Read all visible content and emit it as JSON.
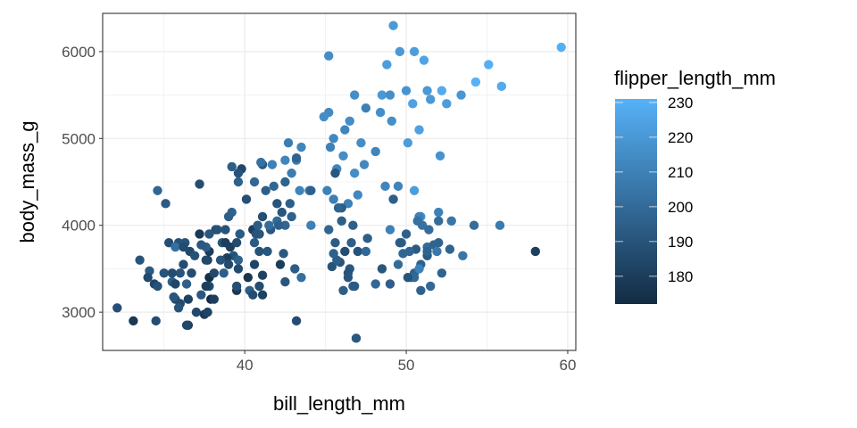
{
  "chart_data": {
    "type": "scatter",
    "xlabel": "bill_length_mm",
    "ylabel": "body_mass_g",
    "xlim": [
      31.2,
      60.5
    ],
    "ylim": [
      2560,
      6440
    ],
    "x_ticks": [
      "40",
      "50",
      "60"
    ],
    "y_ticks": [
      "3000",
      "4000",
      "5000",
      "6000"
    ],
    "grid": true,
    "legend": {
      "title": "flipper_length_mm",
      "placement": "right",
      "type": "colorbar",
      "range": [
        172,
        231
      ],
      "ticks": [
        "180",
        "190",
        "200",
        "210",
        "220",
        "230"
      ],
      "low_color": "#132B43",
      "high_color": "#56B1F7"
    },
    "points_fields": [
      "bill_length_mm",
      "body_mass_g",
      "flipper_length_mm"
    ],
    "points": [
      [
        49.2,
        6300,
        221
      ],
      [
        59.6,
        6050,
        230
      ],
      [
        45.2,
        5950,
        215
      ],
      [
        55.1,
        5850,
        230
      ],
      [
        48.8,
        5850,
        222
      ],
      [
        49.6,
        6000,
        220
      ],
      [
        50.5,
        6000,
        222
      ],
      [
        51.1,
        5900,
        225
      ],
      [
        54.3,
        5650,
        231
      ],
      [
        55.9,
        5600,
        228
      ],
      [
        52.2,
        5550,
        228
      ],
      [
        50.0,
        5550,
        218
      ],
      [
        51.3,
        5550,
        220
      ],
      [
        51.5,
        5450,
        220
      ],
      [
        52.5,
        5400,
        222
      ],
      [
        53.4,
        5500,
        219
      ],
      [
        48.5,
        5500,
        220
      ],
      [
        46.8,
        5500,
        215
      ],
      [
        49.0,
        5500,
        216
      ],
      [
        50.4,
        5400,
        224
      ],
      [
        47.5,
        5350,
        210
      ],
      [
        45.2,
        5300,
        214
      ],
      [
        46.5,
        5200,
        215
      ],
      [
        44.9,
        5250,
        215
      ],
      [
        46.2,
        5100,
        212
      ],
      [
        48.4,
        5300,
        216
      ],
      [
        50.8,
        5100,
        224
      ],
      [
        45.5,
        5000,
        213
      ],
      [
        47.2,
        4950,
        215
      ],
      [
        43.5,
        4900,
        212
      ],
      [
        42.7,
        4950,
        208
      ],
      [
        46.1,
        4800,
        215
      ],
      [
        48.1,
        4850,
        212
      ],
      [
        49.1,
        5200,
        216
      ],
      [
        50.1,
        4950,
        222
      ],
      [
        52.1,
        4800,
        218
      ],
      [
        45.3,
        4900,
        210
      ],
      [
        47.4,
        4700,
        213
      ],
      [
        46.8,
        4600,
        215
      ],
      [
        43.2,
        4750,
        209
      ],
      [
        45.7,
        4650,
        212
      ],
      [
        48.7,
        4450,
        212
      ],
      [
        49.5,
        4450,
        211
      ],
      [
        44.0,
        4400,
        208
      ],
      [
        45.1,
        4400,
        210
      ],
      [
        46.4,
        4250,
        210
      ],
      [
        45.5,
        4300,
        209
      ],
      [
        50.5,
        4400,
        222
      ],
      [
        45.8,
        4200,
        210
      ],
      [
        47.0,
        4350,
        213
      ],
      [
        42.9,
        4600,
        208
      ],
      [
        41.7,
        4700,
        210
      ],
      [
        41.1,
        4700,
        208
      ],
      [
        43.4,
        4400,
        211
      ],
      [
        50.9,
        4100,
        218
      ],
      [
        42.5,
        4750,
        212
      ],
      [
        46.5,
        3500,
        192
      ],
      [
        50.0,
        3900,
        196
      ],
      [
        51.3,
        3650,
        193
      ],
      [
        45.4,
        3525,
        190
      ],
      [
        52.7,
        3725,
        197
      ],
      [
        45.2,
        3950,
        198
      ],
      [
        46.1,
        3250,
        195
      ],
      [
        51.3,
        3750,
        201
      ],
      [
        46.0,
        4050,
        195
      ],
      [
        51.3,
        3700,
        197
      ],
      [
        46.6,
        3800,
        195
      ],
      [
        51.7,
        3775,
        197
      ],
      [
        47.0,
        3700,
        190
      ],
      [
        52.0,
        4050,
        201
      ],
      [
        45.9,
        3575,
        190
      ],
      [
        50.5,
        3450,
        196
      ],
      [
        50.3,
        3400,
        200
      ],
      [
        58.0,
        3700,
        181
      ],
      [
        46.4,
        3450,
        190
      ],
      [
        49.2,
        4300,
        195
      ],
      [
        42.4,
        3675,
        192
      ],
      [
        48.5,
        3500,
        191
      ],
      [
        43.2,
        2900,
        187
      ],
      [
        50.6,
        3725,
        193
      ],
      [
        46.7,
        3300,
        195
      ],
      [
        52.0,
        3800,
        197
      ],
      [
        50.5,
        3400,
        199
      ],
      [
        49.5,
        3550,
        200
      ],
      [
        46.4,
        3400,
        191
      ],
      [
        52.8,
        4050,
        205
      ],
      [
        40.9,
        3300,
        187
      ],
      [
        54.2,
        4000,
        201
      ],
      [
        42.5,
        3350,
        191
      ],
      [
        51.0,
        4000,
        203
      ],
      [
        49.7,
        3800,
        195
      ],
      [
        47.5,
        3700,
        199
      ],
      [
        47.6,
        3850,
        195
      ],
      [
        52.0,
        4150,
        210
      ],
      [
        46.9,
        2700,
        192
      ],
      [
        53.5,
        3650,
        205
      ],
      [
        49.0,
        3950,
        210
      ],
      [
        46.2,
        3700,
        187
      ],
      [
        50.9,
        3550,
        196
      ],
      [
        45.5,
        3675,
        196
      ],
      [
        50.9,
        3250,
        196
      ],
      [
        50.8,
        4100,
        210
      ],
      [
        50.1,
        3400,
        190
      ],
      [
        49.0,
        3325,
        195
      ],
      [
        51.5,
        3300,
        199
      ],
      [
        49.8,
        3675,
        198
      ],
      [
        48.1,
        3325,
        199
      ],
      [
        51.4,
        3950,
        201
      ],
      [
        45.7,
        3600,
        195
      ],
      [
        50.7,
        4050,
        203
      ],
      [
        42.5,
        4000,
        198
      ],
      [
        52.2,
        3450,
        197
      ],
      [
        45.6,
        3800,
        194
      ],
      [
        51.9,
        3700,
        206
      ],
      [
        46.8,
        3300,
        193
      ],
      [
        46.7,
        4000,
        195
      ],
      [
        55.8,
        4000,
        207
      ],
      [
        43.5,
        3400,
        202
      ],
      [
        49.6,
        3800,
        193
      ],
      [
        50.8,
        3500,
        210
      ],
      [
        50.2,
        3700,
        198
      ],
      [
        39.1,
        3750,
        181
      ],
      [
        39.5,
        3800,
        186
      ],
      [
        40.3,
        3250,
        195
      ],
      [
        36.7,
        3450,
        193
      ],
      [
        39.3,
        3650,
        190
      ],
      [
        38.9,
        3625,
        181
      ],
      [
        39.2,
        4675,
        195
      ],
      [
        34.1,
        3475,
        193
      ],
      [
        42.0,
        4250,
        190
      ],
      [
        37.8,
        3300,
        186
      ],
      [
        37.8,
        3700,
        180
      ],
      [
        41.1,
        3200,
        182
      ],
      [
        38.6,
        3800,
        191
      ],
      [
        34.6,
        4400,
        198
      ],
      [
        36.6,
        3700,
        185
      ],
      [
        38.7,
        3450,
        195
      ],
      [
        42.5,
        4500,
        197
      ],
      [
        34.4,
        3325,
        184
      ],
      [
        46.0,
        4200,
        194
      ],
      [
        37.8,
        3400,
        174
      ],
      [
        37.7,
        3600,
        180
      ],
      [
        35.9,
        3800,
        189
      ],
      [
        38.2,
        3950,
        185
      ],
      [
        38.8,
        3800,
        180
      ],
      [
        35.3,
        3800,
        187
      ],
      [
        40.6,
        3550,
        183
      ],
      [
        40.5,
        3200,
        187
      ],
      [
        37.9,
        3150,
        172
      ],
      [
        40.5,
        3950,
        180
      ],
      [
        39.5,
        3250,
        178
      ],
      [
        37.2,
        3900,
        178
      ],
      [
        39.5,
        3300,
        188
      ],
      [
        40.9,
        3900,
        184
      ],
      [
        36.4,
        3325,
        195
      ],
      [
        39.2,
        4150,
        196
      ],
      [
        38.8,
        3950,
        190
      ],
      [
        42.2,
        3550,
        180
      ],
      [
        37.6,
        3300,
        181
      ],
      [
        39.8,
        4650,
        184
      ],
      [
        36.5,
        3150,
        182
      ],
      [
        40.8,
        3900,
        195
      ],
      [
        36.0,
        3100,
        186
      ],
      [
        44.1,
        4400,
        196
      ],
      [
        37.0,
        3000,
        185
      ],
      [
        39.6,
        4600,
        190
      ],
      [
        41.1,
        3425,
        182
      ],
      [
        37.5,
        2975,
        179
      ],
      [
        36.0,
        3450,
        190
      ],
      [
        42.3,
        4150,
        191
      ],
      [
        39.6,
        3500,
        186
      ],
      [
        40.1,
        4300,
        188
      ],
      [
        35.0,
        3450,
        190
      ],
      [
        42.0,
        4050,
        200
      ],
      [
        34.5,
        2900,
        187
      ],
      [
        41.4,
        3700,
        191
      ],
      [
        39.0,
        3550,
        186
      ],
      [
        40.6,
        3800,
        193
      ],
      [
        36.5,
        2850,
        181
      ],
      [
        37.6,
        3750,
        194
      ],
      [
        35.7,
        3150,
        185
      ],
      [
        41.3,
        4400,
        195
      ],
      [
        37.6,
        3600,
        185
      ],
      [
        41.1,
        4700,
        192
      ],
      [
        36.4,
        2850,
        184
      ],
      [
        41.6,
        3950,
        192
      ],
      [
        35.5,
        3350,
        195
      ],
      [
        41.1,
        4100,
        188
      ],
      [
        35.9,
        3050,
        190
      ],
      [
        41.8,
        4450,
        198
      ],
      [
        33.5,
        3600,
        190
      ],
      [
        39.7,
        3900,
        190
      ],
      [
        39.6,
        4500,
        196
      ],
      [
        45.8,
        4200,
        197
      ],
      [
        35.5,
        3450,
        187
      ],
      [
        42.8,
        4250,
        195
      ],
      [
        40.9,
        3700,
        189
      ],
      [
        37.2,
        4475,
        187
      ],
      [
        36.2,
        3550,
        187
      ],
      [
        42.1,
        4000,
        195
      ],
      [
        34.6,
        3300,
        189
      ],
      [
        42.9,
        4100,
        196
      ],
      [
        36.7,
        3450,
        187
      ],
      [
        35.1,
        4250,
        193
      ],
      [
        32.1,
        3050,
        188
      ],
      [
        33.1,
        2900,
        178
      ],
      [
        38.1,
        3150,
        181
      ],
      [
        40.2,
        3400,
        176
      ],
      [
        34.0,
        3400,
        185
      ],
      [
        37.3,
        3775,
        192
      ],
      [
        35.6,
        3175,
        191
      ],
      [
        36.3,
        3800,
        190
      ],
      [
        38.3,
        3950,
        189
      ],
      [
        38.5,
        3600,
        190
      ],
      [
        43.2,
        4775,
        197
      ],
      [
        39.7,
        3900,
        193
      ],
      [
        35.7,
        3750,
        202
      ],
      [
        41.5,
        4000,
        201
      ],
      [
        37.3,
        3200,
        192
      ],
      [
        44.1,
        4000,
        210
      ],
      [
        45.6,
        4600,
        191
      ],
      [
        36.2,
        3750,
        186
      ],
      [
        40.7,
        3900,
        190
      ],
      [
        39.0,
        4100,
        195
      ],
      [
        37.8,
        3900,
        191
      ],
      [
        35.7,
        3325,
        184
      ],
      [
        36.9,
        3650,
        189
      ],
      [
        38.1,
        3450,
        185
      ],
      [
        40.8,
        4000,
        194
      ],
      [
        41.0,
        4725,
        203
      ],
      [
        37.7,
        3000,
        183
      ],
      [
        39.6,
        3600,
        196
      ],
      [
        43.1,
        3500,
        194
      ],
      [
        40.6,
        4500,
        199
      ]
    ]
  }
}
